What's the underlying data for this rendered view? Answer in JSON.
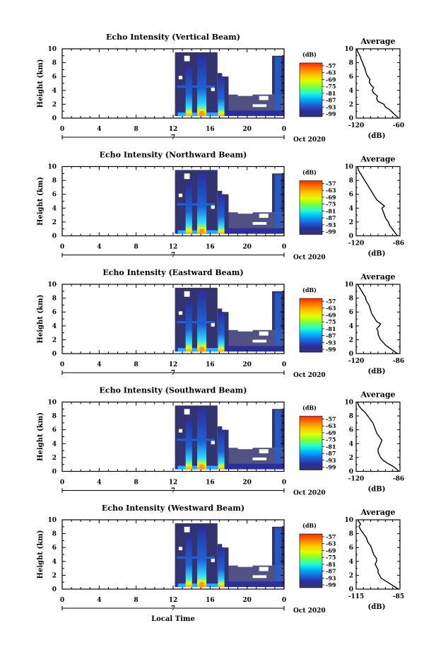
{
  "colorbar": {
    "unit": "(dB)",
    "labels": [
      "-57",
      "-63",
      "-69",
      "-75",
      "-81",
      "-87",
      "-93",
      "-99"
    ],
    "colors": [
      "#ff2a00",
      "#ff7a00",
      "#ffc400",
      "#e0ff00",
      "#7dff3a",
      "#20ffd0",
      "#00b4ff",
      "#1d63d8",
      "#2b2f9a",
      "#33336f"
    ]
  },
  "bottom_xlabel": "Local Time",
  "chart_data": [
    {
      "type": "heatmap",
      "title": "Echo Intensity (Vertical Beam)",
      "xlabel": "",
      "ylabel": "Height (km)",
      "xlim": [
        0,
        24
      ],
      "ylim": [
        0,
        10
      ],
      "xticks": [
        "0",
        "4",
        "8",
        "12",
        "16",
        "20",
        "0"
      ],
      "yticks": [
        "0",
        "2",
        "4",
        "6",
        "8",
        "10"
      ],
      "date_label": "7",
      "month_year": "Oct 2020",
      "z_unit": "dB",
      "profile": {
        "title": "Average",
        "xlabel": "(dB)",
        "xlim": [
          -120,
          -60
        ],
        "xticks": [
          "-120",
          "-60"
        ],
        "yticks": [
          "0",
          "2",
          "4",
          "6",
          "8",
          "10"
        ],
        "points": [
          [
            -62,
            0
          ],
          [
            -66,
            0.4
          ],
          [
            -70,
            0.8
          ],
          [
            -74,
            1.2
          ],
          [
            -80,
            1.6
          ],
          [
            -82,
            2.0
          ],
          [
            -90,
            2.4
          ],
          [
            -92,
            2.8
          ],
          [
            -91,
            3.2
          ],
          [
            -96,
            3.6
          ],
          [
            -98,
            4.0
          ],
          [
            -96,
            4.4
          ],
          [
            -100,
            4.8
          ],
          [
            -102,
            5.2
          ],
          [
            -101,
            5.6
          ],
          [
            -104,
            6.0
          ],
          [
            -106,
            6.4
          ],
          [
            -107,
            6.8
          ],
          [
            -108,
            7.2
          ],
          [
            -110,
            7.6
          ],
          [
            -111,
            8.0
          ],
          [
            -113,
            8.4
          ],
          [
            -114,
            8.8
          ],
          [
            -116,
            9.2
          ],
          [
            -118,
            9.6
          ],
          [
            -119,
            10
          ]
        ]
      }
    },
    {
      "type": "heatmap",
      "title": "Echo Intensity (Northward Beam)",
      "xlabel": "",
      "ylabel": "Height (km)",
      "xlim": [
        0,
        24
      ],
      "ylim": [
        0,
        10
      ],
      "xticks": [
        "0",
        "4",
        "8",
        "12",
        "16",
        "20",
        "0"
      ],
      "yticks": [
        "0",
        "2",
        "4",
        "6",
        "8",
        "10"
      ],
      "date_label": "7",
      "month_year": "Oct 2020",
      "z_unit": "dB",
      "profile": {
        "title": "Average",
        "xlabel": "(dB)",
        "xlim": [
          -120,
          -86
        ],
        "xticks": [
          "-120",
          "-86"
        ],
        "yticks": [
          "0",
          "2",
          "4",
          "6",
          "8",
          "10"
        ],
        "points": [
          [
            -88,
            0
          ],
          [
            -90,
            0.5
          ],
          [
            -92,
            1.0
          ],
          [
            -94,
            1.5
          ],
          [
            -95,
            2.0
          ],
          [
            -97,
            2.5
          ],
          [
            -98,
            3.0
          ],
          [
            -99,
            3.5
          ],
          [
            -100,
            4.0
          ],
          [
            -98,
            4.3
          ],
          [
            -100,
            4.6
          ],
          [
            -104,
            5.2
          ],
          [
            -106,
            5.8
          ],
          [
            -108,
            6.4
          ],
          [
            -110,
            7.0
          ],
          [
            -112,
            7.6
          ],
          [
            -114,
            8.2
          ],
          [
            -116,
            8.8
          ],
          [
            -118,
            9.4
          ],
          [
            -119,
            10
          ]
        ]
      }
    },
    {
      "type": "heatmap",
      "title": "Echo Intensity (Eastward Beam)",
      "xlabel": "",
      "ylabel": "Height (km)",
      "xlim": [
        0,
        24
      ],
      "ylim": [
        0,
        10
      ],
      "xticks": [
        "0",
        "4",
        "8",
        "12",
        "16",
        "20",
        "0"
      ],
      "yticks": [
        "0",
        "2",
        "4",
        "6",
        "8",
        "10"
      ],
      "date_label": "7",
      "month_year": "Oct 2020",
      "z_unit": "dB",
      "profile": {
        "title": "Average",
        "xlabel": "(dB)",
        "xlim": [
          -120,
          -86
        ],
        "xticks": [
          "-120",
          "-86"
        ],
        "yticks": [
          "0",
          "2",
          "4",
          "6",
          "8",
          "10"
        ],
        "points": [
          [
            -88,
            0
          ],
          [
            -91,
            0.4
          ],
          [
            -94,
            0.8
          ],
          [
            -97,
            1.2
          ],
          [
            -99,
            1.6
          ],
          [
            -101,
            2.0
          ],
          [
            -102,
            2.4
          ],
          [
            -103,
            2.8
          ],
          [
            -103,
            3.2
          ],
          [
            -104,
            3.6
          ],
          [
            -102,
            4.0
          ],
          [
            -101,
            4.3
          ],
          [
            -104,
            4.6
          ],
          [
            -106,
            5.2
          ],
          [
            -108,
            5.8
          ],
          [
            -109,
            6.4
          ],
          [
            -110,
            7.0
          ],
          [
            -112,
            7.6
          ],
          [
            -113,
            8.2
          ],
          [
            -115,
            8.8
          ],
          [
            -117,
            9.4
          ],
          [
            -119,
            10
          ]
        ]
      }
    },
    {
      "type": "heatmap",
      "title": "Echo Intensity (Southward Beam)",
      "xlabel": "",
      "ylabel": "Height (km)",
      "xlim": [
        0,
        24
      ],
      "ylim": [
        0,
        10
      ],
      "xticks": [
        "0",
        "4",
        "8",
        "12",
        "16",
        "20",
        "0"
      ],
      "yticks": [
        "0",
        "2",
        "4",
        "6",
        "8",
        "10"
      ],
      "date_label": "7",
      "month_year": "Oct 2020",
      "z_unit": "dB",
      "profile": {
        "title": "Average",
        "xlabel": "(dB)",
        "xlim": [
          -120,
          -86
        ],
        "xticks": [
          "-120",
          "-86"
        ],
        "yticks": [
          "0",
          "2",
          "4",
          "6",
          "8",
          "10"
        ],
        "points": [
          [
            -87,
            0
          ],
          [
            -89,
            0.4
          ],
          [
            -92,
            0.8
          ],
          [
            -96,
            1.2
          ],
          [
            -99,
            1.6
          ],
          [
            -101,
            2.0
          ],
          [
            -102,
            2.4
          ],
          [
            -103,
            2.8
          ],
          [
            -103,
            3.2
          ],
          [
            -102,
            3.6
          ],
          [
            -101,
            4.0
          ],
          [
            -100,
            4.5
          ],
          [
            -102,
            5.0
          ],
          [
            -104,
            5.5
          ],
          [
            -105,
            6.0
          ],
          [
            -106,
            6.5
          ],
          [
            -107,
            7.0
          ],
          [
            -109,
            7.5
          ],
          [
            -111,
            8.0
          ],
          [
            -113,
            8.5
          ],
          [
            -116,
            9.0
          ],
          [
            -118,
            9.5
          ],
          [
            -119,
            10
          ]
        ]
      }
    },
    {
      "type": "heatmap",
      "title": "Echo Intensity (Westward Beam)",
      "xlabel": "Local Time",
      "ylabel": "Height (km)",
      "xlim": [
        0,
        24
      ],
      "ylim": [
        0,
        10
      ],
      "xticks": [
        "0",
        "4",
        "8",
        "12",
        "16",
        "20",
        "0"
      ],
      "yticks": [
        "0",
        "2",
        "4",
        "6",
        "8",
        "10"
      ],
      "date_label": "7",
      "month_year": "Oct 2020",
      "z_unit": "dB",
      "profile": {
        "title": "Average",
        "xlabel": "(dB)",
        "xlim": [
          -115,
          -85
        ],
        "xticks": [
          "-115",
          "-85"
        ],
        "yticks": [
          "0",
          "2",
          "4",
          "6",
          "8",
          "10"
        ],
        "points": [
          [
            -86,
            0
          ],
          [
            -89,
            0.4
          ],
          [
            -92,
            0.8
          ],
          [
            -95,
            1.2
          ],
          [
            -98,
            1.6
          ],
          [
            -99,
            2.0
          ],
          [
            -100,
            2.4
          ],
          [
            -100,
            2.8
          ],
          [
            -101,
            3.2
          ],
          [
            -102,
            3.6
          ],
          [
            -101,
            4.0
          ],
          [
            -101,
            4.4
          ],
          [
            -103,
            5.0
          ],
          [
            -104,
            5.6
          ],
          [
            -105,
            6.2
          ],
          [
            -107,
            6.8
          ],
          [
            -108,
            7.4
          ],
          [
            -110,
            8.0
          ],
          [
            -112,
            8.6
          ],
          [
            -113,
            9.0
          ],
          [
            -112,
            9.4
          ],
          [
            -114,
            10
          ]
        ]
      }
    }
  ]
}
